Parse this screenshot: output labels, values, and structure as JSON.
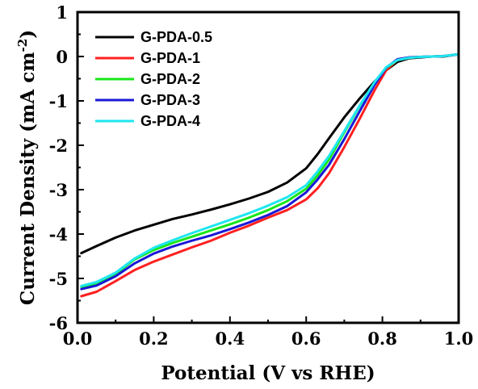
{
  "chart_data": {
    "type": "line",
    "title": "",
    "xlabel": "Potential (V vs RHE)",
    "ylabel_main": "Current Density (mA cm",
    "ylabel_sup": "-2",
    "ylabel_close": ")",
    "xlim": [
      0.0,
      1.0
    ],
    "ylim": [
      -6,
      1
    ],
    "xticks": [
      0.0,
      0.2,
      0.4,
      0.6,
      0.8,
      1.0
    ],
    "xtick_labels": [
      "0.0",
      "0.2",
      "0.4",
      "0.6",
      "0.8",
      "1.0"
    ],
    "yticks": [
      1,
      0,
      -1,
      -2,
      -3,
      -4,
      -5,
      -6
    ],
    "ytick_labels": [
      "1",
      "0",
      "-1",
      "-2",
      "-3",
      "-4",
      "-5",
      "-6"
    ],
    "grid": false,
    "legend_position": "top-left",
    "series": [
      {
        "name": "G-PDA-0.5",
        "color": "#000000",
        "x": [
          0.01,
          0.05,
          0.1,
          0.15,
          0.2,
          0.25,
          0.3,
          0.35,
          0.4,
          0.45,
          0.5,
          0.55,
          0.6,
          0.63,
          0.66,
          0.7,
          0.74,
          0.78,
          0.81,
          0.84,
          0.87,
          0.9,
          0.93,
          0.96,
          1.0
        ],
        "y": [
          -4.43,
          -4.27,
          -4.08,
          -3.92,
          -3.79,
          -3.66,
          -3.56,
          -3.45,
          -3.33,
          -3.2,
          -3.05,
          -2.84,
          -2.52,
          -2.2,
          -1.84,
          -1.37,
          -0.95,
          -0.56,
          -0.31,
          -0.12,
          -0.04,
          -0.02,
          0.0,
          0.0,
          0.05
        ]
      },
      {
        "name": "G-PDA-1",
        "color": "#ff2020",
        "x": [
          0.01,
          0.05,
          0.1,
          0.15,
          0.2,
          0.25,
          0.3,
          0.35,
          0.4,
          0.45,
          0.5,
          0.55,
          0.6,
          0.63,
          0.66,
          0.7,
          0.74,
          0.78,
          0.81,
          0.84,
          0.87,
          0.9,
          0.93,
          0.96,
          1.0
        ],
        "y": [
          -5.4,
          -5.3,
          -5.06,
          -4.81,
          -4.62,
          -4.46,
          -4.3,
          -4.15,
          -3.97,
          -3.81,
          -3.63,
          -3.46,
          -3.22,
          -2.97,
          -2.63,
          -2.04,
          -1.41,
          -0.75,
          -0.31,
          -0.07,
          -0.02,
          -0.01,
          0.0,
          0.01,
          0.05
        ]
      },
      {
        "name": "G-PDA-2",
        "color": "#19e619",
        "x": [
          0.01,
          0.05,
          0.1,
          0.15,
          0.2,
          0.25,
          0.3,
          0.35,
          0.4,
          0.45,
          0.5,
          0.55,
          0.6,
          0.63,
          0.66,
          0.7,
          0.74,
          0.78,
          0.81,
          0.84,
          0.87,
          0.9,
          0.93,
          0.96,
          1.0
        ],
        "y": [
          -5.19,
          -5.11,
          -4.9,
          -4.57,
          -4.36,
          -4.2,
          -4.06,
          -3.92,
          -3.78,
          -3.63,
          -3.46,
          -3.26,
          -2.98,
          -2.68,
          -2.32,
          -1.71,
          -1.12,
          -0.58,
          -0.26,
          -0.08,
          -0.03,
          -0.01,
          0.0,
          0.01,
          0.05
        ]
      },
      {
        "name": "G-PDA-3",
        "color": "#1818d8",
        "x": [
          0.01,
          0.05,
          0.1,
          0.15,
          0.2,
          0.25,
          0.3,
          0.35,
          0.4,
          0.45,
          0.5,
          0.55,
          0.6,
          0.63,
          0.66,
          0.7,
          0.74,
          0.78,
          0.81,
          0.84,
          0.87,
          0.9,
          0.93,
          0.96,
          1.0
        ],
        "y": [
          -5.24,
          -5.16,
          -4.95,
          -4.66,
          -4.44,
          -4.28,
          -4.15,
          -4.03,
          -3.89,
          -3.74,
          -3.57,
          -3.37,
          -3.06,
          -2.77,
          -2.44,
          -1.86,
          -1.24,
          -0.63,
          -0.25,
          -0.06,
          -0.02,
          -0.01,
          0.0,
          0.01,
          0.05
        ]
      },
      {
        "name": "G-PDA-4",
        "color": "#1fe6f0",
        "x": [
          0.01,
          0.05,
          0.1,
          0.15,
          0.2,
          0.25,
          0.3,
          0.35,
          0.4,
          0.45,
          0.5,
          0.55,
          0.6,
          0.63,
          0.66,
          0.7,
          0.74,
          0.78,
          0.81,
          0.84,
          0.87,
          0.9,
          0.93,
          0.96,
          1.0
        ],
        "y": [
          -5.17,
          -5.08,
          -4.87,
          -4.55,
          -4.31,
          -4.14,
          -3.98,
          -3.83,
          -3.68,
          -3.53,
          -3.36,
          -3.17,
          -2.9,
          -2.59,
          -2.24,
          -1.68,
          -1.11,
          -0.57,
          -0.24,
          -0.08,
          -0.03,
          -0.01,
          0.0,
          0.01,
          0.05
        ]
      }
    ]
  }
}
